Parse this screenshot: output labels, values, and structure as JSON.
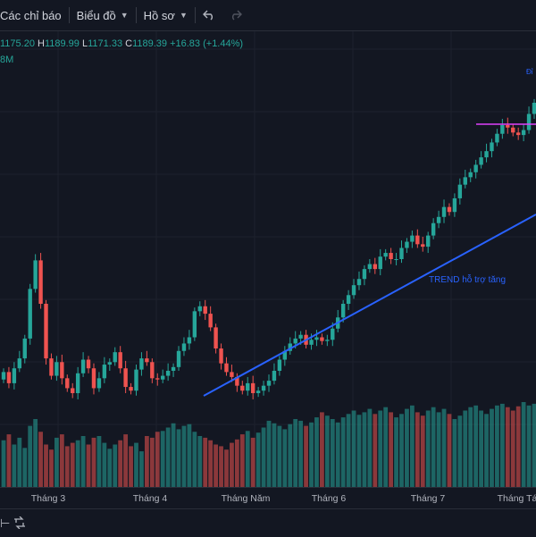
{
  "toolbar": {
    "indicators_label": "Các chỉ báo",
    "chart_label": "Biểu đồ",
    "profile_label": "Hồ sơ",
    "undo_icon": "undo-icon",
    "redo_icon": "redo-icon"
  },
  "legend": {
    "open_value": "1175.20",
    "high_key": "H",
    "high_value": "1189.99",
    "low_key": "L",
    "low_value": "1171.33",
    "close_key": "C",
    "close_value": "1189.39",
    "change": "+16.83 (+1.44%)",
    "volume_value": "8M"
  },
  "colors": {
    "up": "#26a69a",
    "down": "#ef5350",
    "trend_line": "#2962ff",
    "h_line": "#e040fb",
    "background": "#131722"
  },
  "annotations": {
    "trend_label": "TREND hỗ trợ tăng",
    "top_label": "Đỉ"
  },
  "chart_data": {
    "type": "candlestick",
    "x_ticks": [
      "Tháng 3",
      "Tháng 4",
      "Tháng Năm",
      "Tháng 6",
      "Tháng 7",
      "Tháng Tá"
    ],
    "closes": [
      1085,
      1076,
      1088,
      1096,
      1112,
      1152,
      1175,
      1140,
      1096,
      1082,
      1093,
      1080,
      1072,
      1068,
      1084,
      1095,
      1088,
      1072,
      1080,
      1091,
      1093,
      1101,
      1088,
      1073,
      1070,
      1087,
      1096,
      1093,
      1080,
      1079,
      1082,
      1086,
      1089,
      1102,
      1108,
      1113,
      1134,
      1138,
      1132,
      1121,
      1104,
      1092,
      1085,
      1081,
      1074,
      1070,
      1076,
      1068,
      1070,
      1074,
      1078,
      1086,
      1095,
      1102,
      1108,
      1112,
      1115,
      1107,
      1111,
      1113,
      1110,
      1111,
      1120,
      1129,
      1140,
      1147,
      1155,
      1160,
      1168,
      1172,
      1168,
      1178,
      1181,
      1176,
      1176,
      1185,
      1190,
      1195,
      1188,
      1186,
      1195,
      1205,
      1210,
      1218,
      1214,
      1225,
      1236,
      1242,
      1246,
      1252,
      1258,
      1263,
      1270,
      1277,
      1284,
      1282,
      1278,
      1276,
      1280,
      1293,
      1302
    ],
    "volumes": [
      0.55,
      0.62,
      0.5,
      0.58,
      0.46,
      0.72,
      0.8,
      0.65,
      0.5,
      0.44,
      0.58,
      0.62,
      0.48,
      0.52,
      0.55,
      0.6,
      0.5,
      0.58,
      0.6,
      0.52,
      0.45,
      0.5,
      0.55,
      0.62,
      0.48,
      0.52,
      0.42,
      0.6,
      0.58,
      0.65,
      0.66,
      0.7,
      0.75,
      0.68,
      0.72,
      0.74,
      0.65,
      0.6,
      0.58,
      0.55,
      0.5,
      0.48,
      0.44,
      0.52,
      0.56,
      0.62,
      0.66,
      0.58,
      0.64,
      0.7,
      0.78,
      0.75,
      0.72,
      0.68,
      0.74,
      0.8,
      0.78,
      0.72,
      0.76,
      0.82,
      0.88,
      0.84,
      0.8,
      0.76,
      0.82,
      0.86,
      0.9,
      0.85,
      0.88,
      0.92,
      0.86,
      0.9,
      0.94,
      0.88,
      0.82,
      0.86,
      0.92,
      0.96,
      0.88,
      0.84,
      0.9,
      0.94,
      0.88,
      0.92,
      0.86,
      0.8,
      0.84,
      0.9,
      0.94,
      0.96,
      0.9,
      0.86,
      0.92,
      0.96,
      0.98,
      0.94,
      0.9,
      0.95,
      1.0,
      0.96,
      0.98
    ],
    "y_range": [
      1050,
      1320
    ]
  }
}
